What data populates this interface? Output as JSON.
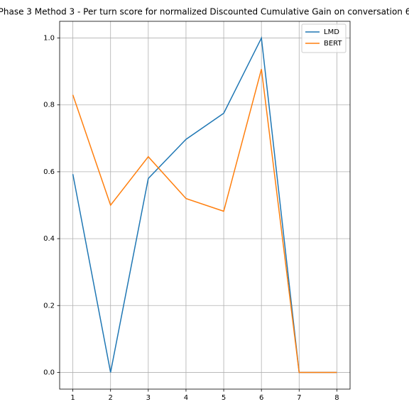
{
  "chart_data": {
    "type": "line",
    "title": "Phase 3 Method 3 - Per turn score for normalized Discounted Cumulative Gain on conversation 6",
    "x": [
      1,
      2,
      3,
      4,
      5,
      6,
      7,
      8
    ],
    "series": [
      {
        "name": "LMD",
        "color": "#1f77b4",
        "values": [
          0.593,
          0.0,
          0.58,
          0.697,
          0.775,
          1.0,
          0.0,
          0.0
        ]
      },
      {
        "name": "BERT",
        "color": "#ff7f0e",
        "values": [
          0.83,
          0.5,
          0.645,
          0.52,
          0.482,
          0.907,
          0.0,
          0.0
        ]
      }
    ],
    "xlim": [
      0.65,
      8.35
    ],
    "xticks": [
      1,
      2,
      3,
      4,
      5,
      6,
      7,
      8
    ],
    "ylim": [
      -0.05,
      1.05
    ],
    "yticks": [
      {
        "value": 0,
        "label": "0.0"
      },
      {
        "value": 0.2,
        "label": "0.2"
      },
      {
        "value": 0.4,
        "label": "0.4"
      },
      {
        "value": 0.6,
        "label": "0.6"
      },
      {
        "value": 0.8,
        "label": "0.8"
      },
      {
        "value": 1,
        "label": "1.0"
      }
    ],
    "grid": true,
    "legend": "upper right"
  }
}
